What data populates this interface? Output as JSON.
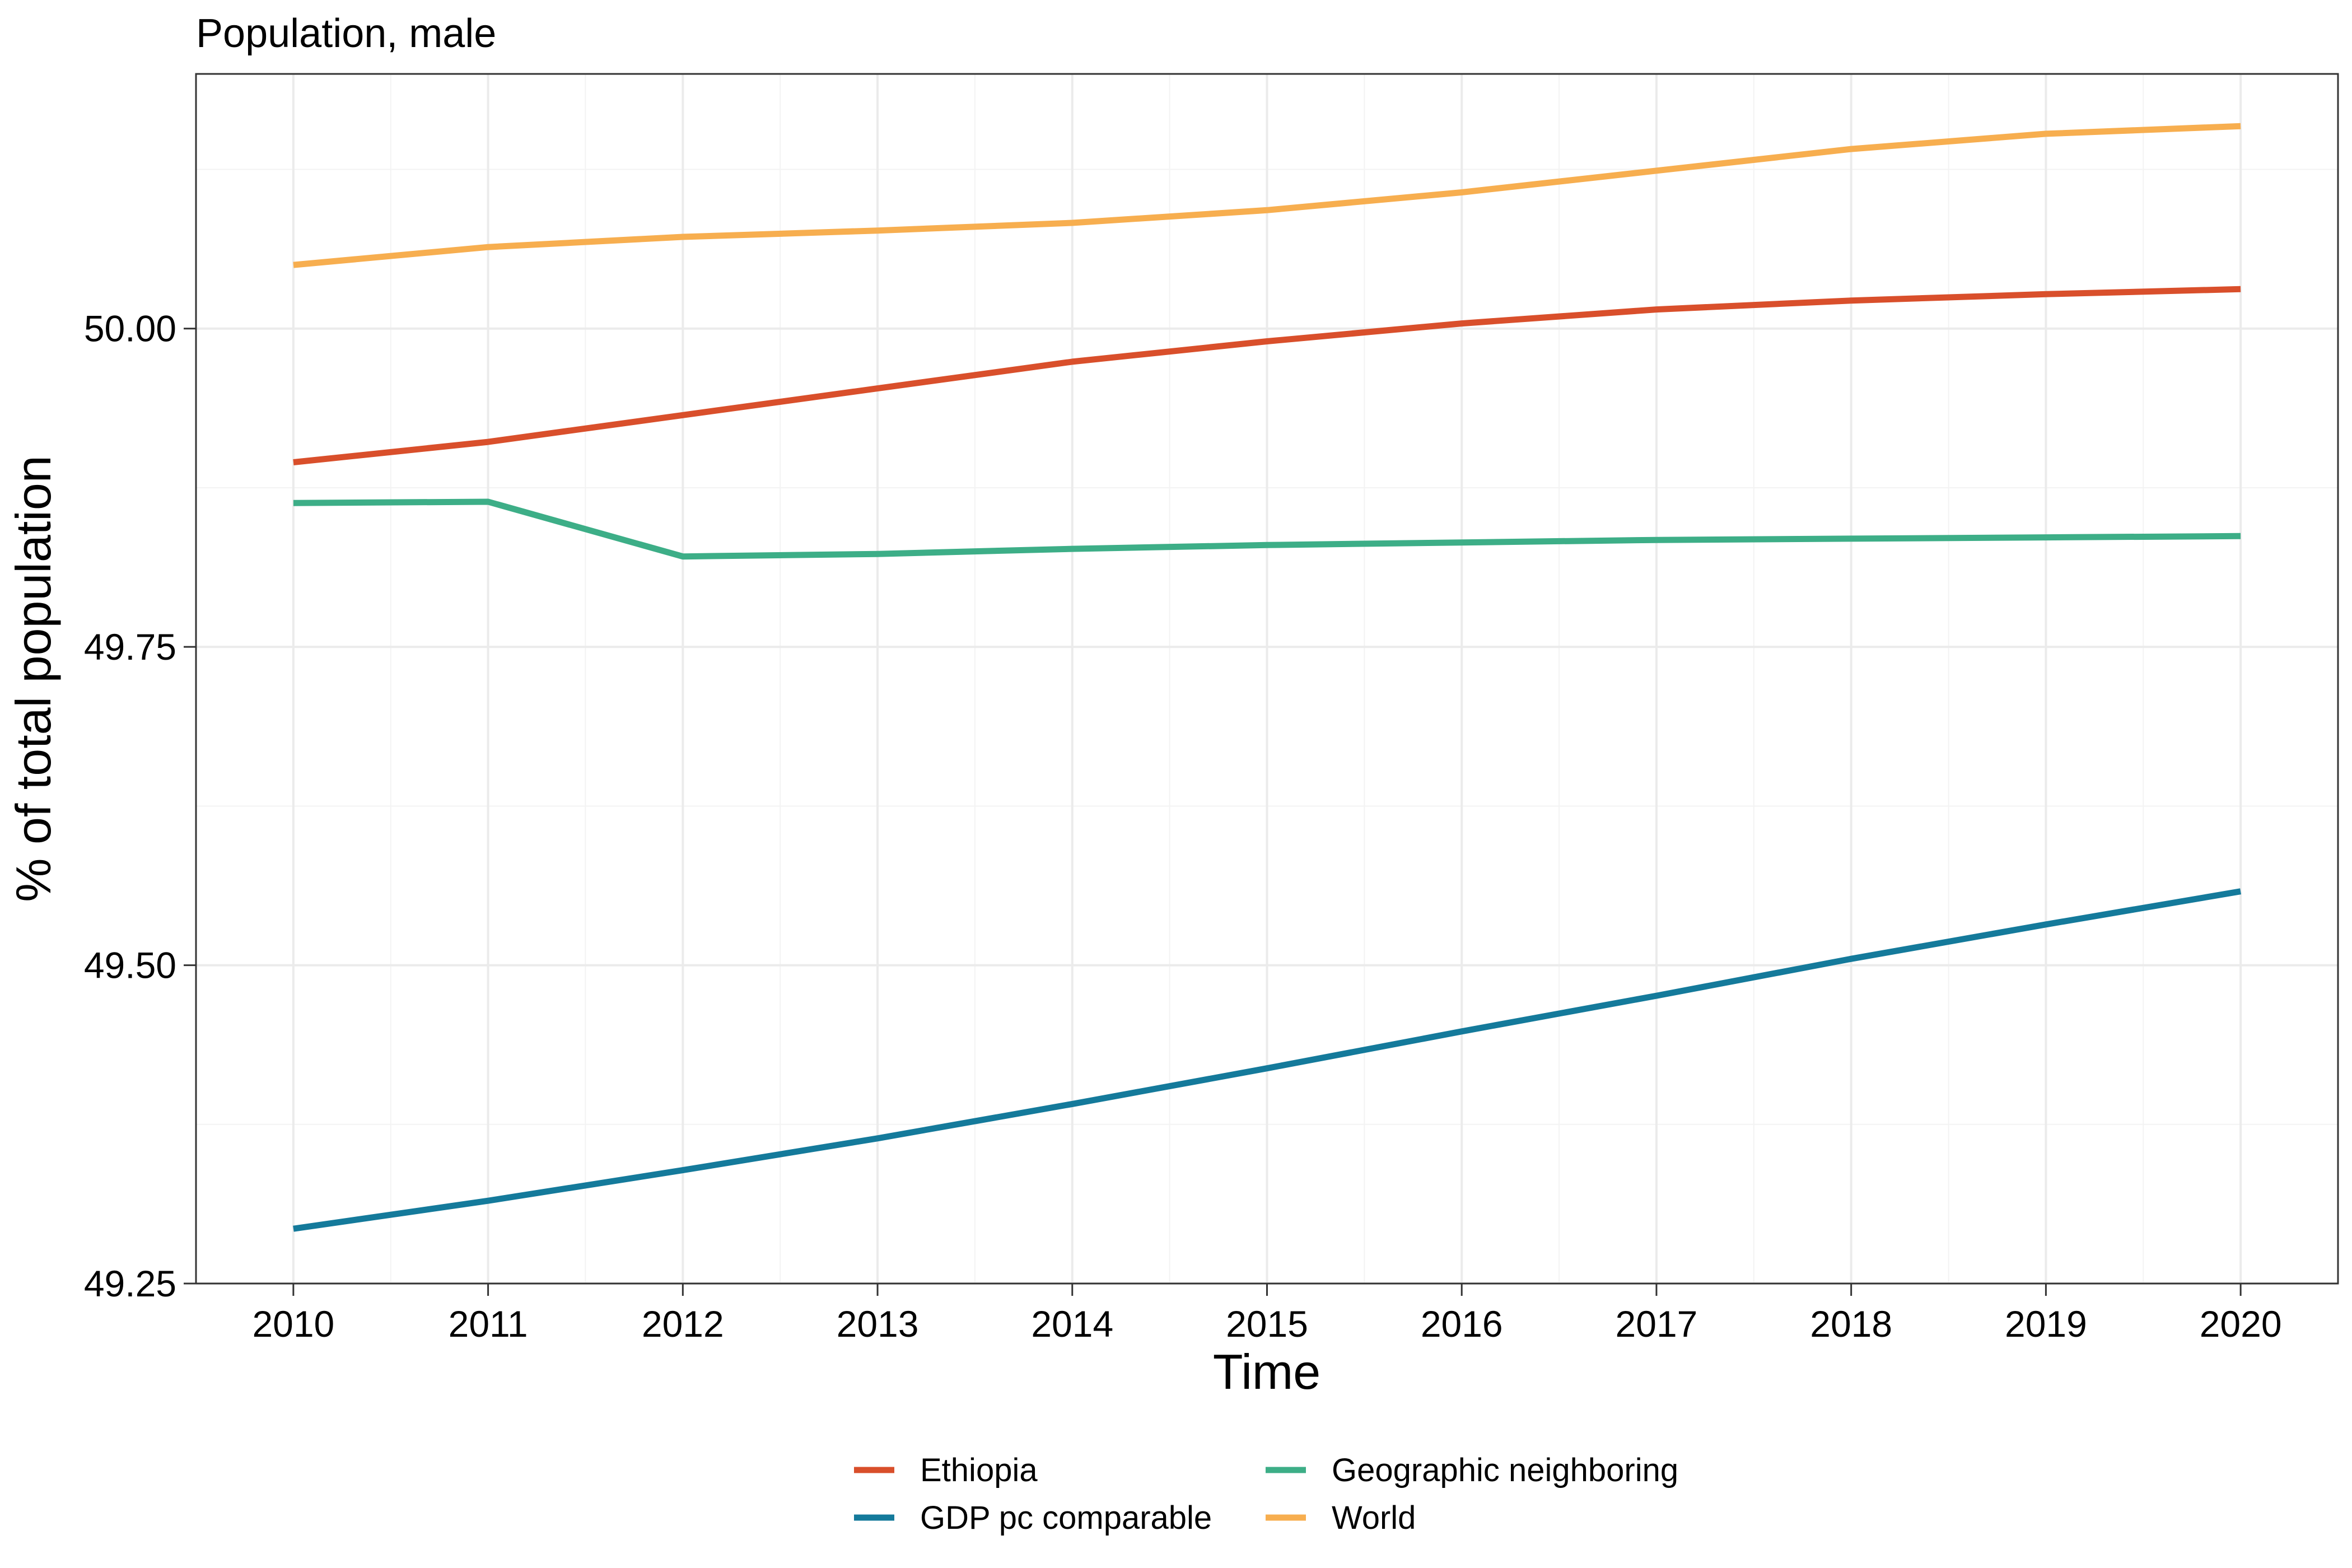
{
  "chart_data": {
    "type": "line",
    "title": "Population, male",
    "xlabel": "Time",
    "ylabel": "% of total population",
    "x": [
      2010,
      2011,
      2012,
      2013,
      2014,
      2015,
      2016,
      2017,
      2018,
      2019,
      2020
    ],
    "xlim": [
      2009.5,
      2020.5
    ],
    "ylim": [
      49.25,
      50.2
    ],
    "x_ticks": [
      {
        "value": 2010,
        "label": "2010"
      },
      {
        "value": 2011,
        "label": "2011"
      },
      {
        "value": 2012,
        "label": "2012"
      },
      {
        "value": 2013,
        "label": "2013"
      },
      {
        "value": 2014,
        "label": "2014"
      },
      {
        "value": 2015,
        "label": "2015"
      },
      {
        "value": 2016,
        "label": "2016"
      },
      {
        "value": 2017,
        "label": "2017"
      },
      {
        "value": 2018,
        "label": "2018"
      },
      {
        "value": 2019,
        "label": "2019"
      },
      {
        "value": 2020,
        "label": "2020"
      }
    ],
    "y_ticks": [
      {
        "value": 49.25,
        "label": "49.25"
      },
      {
        "value": 49.5,
        "label": "49.50"
      },
      {
        "value": 49.75,
        "label": "49.75"
      },
      {
        "value": 50.0,
        "label": "50.00"
      }
    ],
    "grid": true,
    "legend_position": "bottom",
    "series": [
      {
        "name": "Ethiopia",
        "color": "#D94F2B",
        "values": [
          49.895,
          49.911,
          49.932,
          49.953,
          49.974,
          49.99,
          50.004,
          50.015,
          50.022,
          50.027,
          50.031
        ]
      },
      {
        "name": "GDP pc comparable",
        "color": "#147A9B",
        "values": [
          49.293,
          49.315,
          49.339,
          49.364,
          49.391,
          49.419,
          49.448,
          49.476,
          49.505,
          49.532,
          49.558
        ]
      },
      {
        "name": "Geographic neighboring",
        "color": "#3DAE87",
        "values": [
          49.863,
          49.864,
          49.821,
          49.823,
          49.827,
          49.83,
          49.832,
          49.834,
          49.835,
          49.836,
          49.837
        ]
      },
      {
        "name": "World",
        "color": "#F7AE4F",
        "values": [
          50.05,
          50.064,
          50.072,
          50.077,
          50.083,
          50.093,
          50.107,
          50.124,
          50.141,
          50.153,
          50.159
        ]
      }
    ]
  }
}
